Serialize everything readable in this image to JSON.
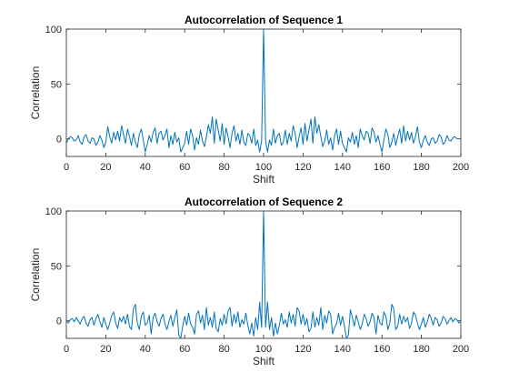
{
  "chart_data": [
    {
      "type": "line",
      "title": "Autocorrelation of Sequence 1",
      "xlabel": "Shift",
      "ylabel": "Correlation",
      "xlim": [
        0,
        200
      ],
      "ylim": [
        -16,
        100
      ],
      "xticks": [
        0,
        20,
        40,
        60,
        80,
        100,
        120,
        140,
        160,
        180,
        200
      ],
      "yticks": [
        0,
        50,
        100
      ],
      "grid": false,
      "series": [
        {
          "color": "#0072BD",
          "x_start": 0,
          "x_step": 1,
          "values": [
            -4,
            0,
            2,
            1,
            -2,
            -1,
            3,
            -3,
            -5,
            2,
            4,
            -2,
            -4,
            1,
            0,
            -6,
            -3,
            3,
            -1,
            -8,
            -3,
            11,
            2,
            -4,
            6,
            -1,
            7,
            -2,
            12,
            4,
            -4,
            9,
            2,
            -6,
            5,
            -3,
            -8,
            4,
            9,
            -1,
            -12,
            -5,
            3,
            -3,
            6,
            10,
            -4,
            5,
            7,
            -1,
            3,
            9,
            -8,
            3,
            -5,
            6,
            -3,
            1,
            -12,
            -8,
            -4,
            7,
            -5,
            9,
            3,
            -10,
            1,
            -5,
            8,
            -2,
            -7,
            2,
            13,
            5,
            20,
            -4,
            18,
            8,
            -2,
            14,
            -5,
            10,
            2,
            -8,
            5,
            12,
            -2,
            5,
            -5,
            8,
            -3,
            -6,
            5,
            3,
            -4,
            9,
            -6,
            -1,
            -12,
            -2,
            100,
            -2,
            -12,
            -1,
            -6,
            9,
            -4,
            3,
            5,
            -6,
            -3,
            8,
            -5,
            5,
            -2,
            12,
            5,
            -8,
            2,
            10,
            -5,
            14,
            -2,
            8,
            18,
            -4,
            20,
            5,
            13,
            2,
            -7,
            -2,
            8,
            -5,
            1,
            -10,
            3,
            9,
            -5,
            7,
            -4,
            -8,
            -12,
            1,
            -3,
            6,
            -5,
            3,
            -8,
            9,
            3,
            -1,
            7,
            5,
            -4,
            10,
            6,
            -3,
            3,
            -5,
            -12,
            -1,
            9,
            4,
            -8,
            -3,
            5,
            -6,
            2,
            9,
            -4,
            12,
            -2,
            7,
            -1,
            6,
            -4,
            2,
            11,
            -3,
            -8,
            -1,
            3,
            -3,
            -6,
            0,
            1,
            -4,
            -2,
            4,
            2,
            -5,
            -3,
            3,
            -1,
            -2,
            1,
            2,
            0
          ]
        }
      ]
    },
    {
      "type": "line",
      "title": "Autocorrelation of Sequence 2",
      "xlabel": "Shift",
      "ylabel": "Correlation",
      "xlim": [
        0,
        200
      ],
      "ylim": [
        -16,
        100
      ],
      "xticks": [
        0,
        20,
        40,
        60,
        80,
        100,
        120,
        140,
        160,
        180,
        200
      ],
      "yticks": [
        0,
        50,
        100
      ],
      "grid": false,
      "series": [
        {
          "color": "#0072BD",
          "x_start": 0,
          "x_step": 1,
          "values": [
            0,
            -2,
            1,
            2,
            -1,
            3,
            0,
            -3,
            2,
            4,
            -2,
            -5,
            1,
            3,
            -4,
            2,
            6,
            -1,
            -6,
            3,
            -3,
            -8,
            -2,
            5,
            8,
            -2,
            -7,
            3,
            -1,
            4,
            -3,
            6,
            -5,
            -8,
            11,
            15,
            -2,
            -8,
            4,
            8,
            -4,
            -2,
            5,
            -12,
            3,
            7,
            -1,
            -5,
            2,
            6,
            -3,
            -8,
            -1,
            5,
            -5,
            3,
            10,
            -13,
            -16,
            -5,
            4,
            -4,
            7,
            -3,
            -6,
            -12,
            6,
            9,
            -2,
            5,
            -8,
            12,
            -4,
            3,
            -6,
            8,
            -7,
            -10,
            2,
            -4,
            6,
            -3,
            9,
            12,
            -5,
            6,
            -2,
            8,
            -6,
            1,
            -3,
            7,
            -4,
            -12,
            -2,
            -14,
            3,
            -8,
            17,
            -6,
            100,
            -6,
            17,
            -8,
            3,
            -14,
            -2,
            -12,
            -4,
            7,
            -3,
            1,
            -6,
            8,
            -2,
            6,
            -5,
            12,
            9,
            -3,
            6,
            -4,
            2,
            -10,
            -7,
            8,
            -6,
            3,
            -4,
            12,
            -8,
            5,
            -2,
            9,
            6,
            -12,
            -6,
            -3,
            7,
            -4,
            4,
            -5,
            -16,
            -13,
            10,
            3,
            -5,
            5,
            -1,
            -8,
            -3,
            6,
            2,
            -5,
            -1,
            7,
            3,
            -12,
            5,
            -2,
            -4,
            8,
            4,
            -8,
            -2,
            15,
            11,
            -8,
            -5,
            6,
            -3,
            4,
            -1,
            3,
            -7,
            -2,
            8,
            5,
            -2,
            -8,
            -3,
            3,
            -6,
            -1,
            6,
            2,
            -4,
            3,
            1,
            -5,
            -2,
            4,
            2,
            -3,
            0,
            3,
            -1,
            2,
            1,
            -2,
            0
          ]
        }
      ]
    }
  ]
}
